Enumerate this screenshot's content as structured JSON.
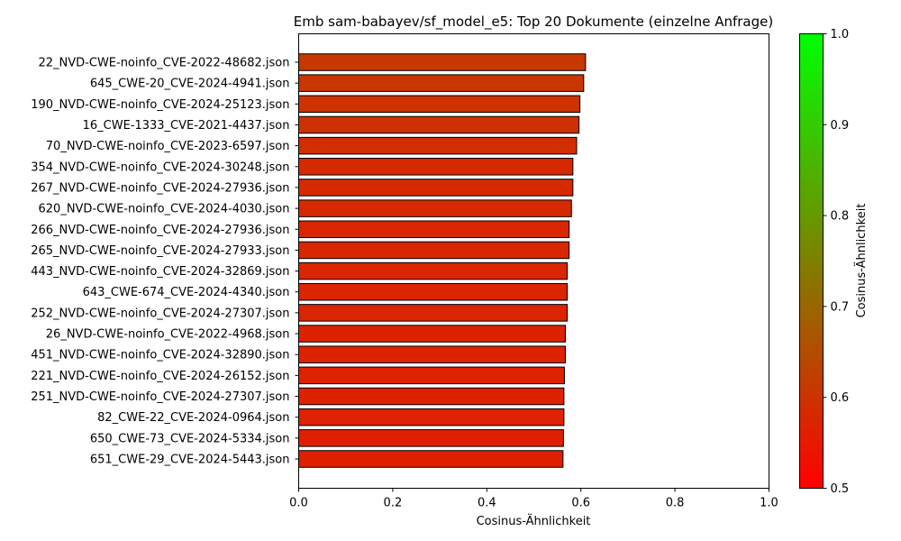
{
  "chart_data": {
    "type": "bar",
    "orientation": "horizontal",
    "title": "Emb sam-babayev/sf_model_e5: Top 20 Dokumente (einzelne Anfrage)",
    "xlabel": "Cosinus-Ähnlichkeit",
    "ylabel": "",
    "xlim": [
      0,
      1
    ],
    "xticks": [
      "0.0",
      "0.2",
      "0.4",
      "0.6",
      "0.8",
      "1.0"
    ],
    "grid": false,
    "categories": [
      "22_NVD-CWE-noinfo_CVE-2022-48682.json",
      "645_CWE-20_CVE-2024-4941.json",
      "190_NVD-CWE-noinfo_CVE-2024-25123.json",
      "16_CWE-1333_CVE-2021-4437.json",
      "70_NVD-CWE-noinfo_CVE-2023-6597.json",
      "354_NVD-CWE-noinfo_CVE-2024-30248.json",
      "267_NVD-CWE-noinfo_CVE-2024-27936.json",
      "620_NVD-CWE-noinfo_CVE-2024-4030.json",
      "266_NVD-CWE-noinfo_CVE-2024-27936.json",
      "265_NVD-CWE-noinfo_CVE-2024-27933.json",
      "443_NVD-CWE-noinfo_CVE-2024-32869.json",
      "643_CWE-674_CVE-2024-4340.json",
      "252_NVD-CWE-noinfo_CVE-2024-27307.json",
      "26_NVD-CWE-noinfo_CVE-2022-4968.json",
      "451_NVD-CWE-noinfo_CVE-2024-32890.json",
      "221_NVD-CWE-noinfo_CVE-2024-26152.json",
      "251_NVD-CWE-noinfo_CVE-2024-27307.json",
      "82_CWE-22_CVE-2024-0964.json",
      "650_CWE-73_CVE-2024-5334.json",
      "651_CWE-29_CVE-2024-5443.json"
    ],
    "values": [
      0.61,
      0.606,
      0.598,
      0.596,
      0.591,
      0.583,
      0.583,
      0.58,
      0.575,
      0.575,
      0.571,
      0.571,
      0.571,
      0.567,
      0.567,
      0.565,
      0.564,
      0.564,
      0.563,
      0.562
    ],
    "colorbar": {
      "label": "Cosinus-Ähnlichkeit",
      "min": 0.5,
      "max": 1.0,
      "ticks": [
        "0.5",
        "0.6",
        "0.7",
        "0.8",
        "0.9",
        "1.0"
      ],
      "color_low": "#ff0000",
      "color_high": "#00ff00"
    },
    "bar_edge_color": "#000000"
  }
}
